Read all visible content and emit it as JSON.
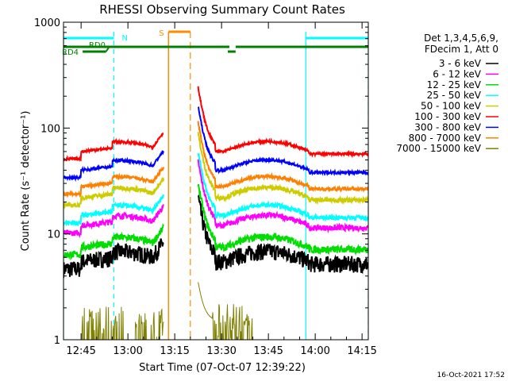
{
  "chart_data": {
    "type": "line",
    "title": "RHESSI Observing Summary Count Rates",
    "xlabel": "Start Time (07-Oct-07 12:39:22)",
    "ylabel": "Count Rate (s⁻¹ detector⁻¹)",
    "ylog": true,
    "xlim": [
      "12:39:22",
      "14:17:00"
    ],
    "ylim": [
      1,
      1000
    ],
    "x_ticks": [
      "12:45",
      "13:00",
      "13:15",
      "13:30",
      "13:45",
      "14:00",
      "14:15"
    ],
    "y_ticks": [
      "1",
      "10",
      "100",
      "1000"
    ],
    "legend_header": [
      "Det 1,3,4,5,6,9,",
      "FDecim 1, Att 0"
    ],
    "legend_position": "right",
    "footer": "16-Oct-2021 17:52",
    "flag_labels": {
      "night": "N",
      "saa": "S",
      "decim": "RD0",
      "rd4": "RD4"
    },
    "flag_colors": {
      "night": "#00ffff",
      "saa": "#ff8c00",
      "decim": "#008000"
    },
    "night_intervals": [
      [
        "12:39:22",
        "12:55:30"
      ],
      [
        "13:57:00",
        "14:17:00"
      ]
    ],
    "saa_interval": [
      "13:13:00",
      "13:20:00"
    ],
    "series": [
      {
        "name": "3 - 6 keV",
        "color": "#000000",
        "base": 5.5,
        "noise": 0.18
      },
      {
        "name": "6 - 12 keV",
        "color": "#ff00ff",
        "base": 12,
        "noise": 0.06
      },
      {
        "name": "12 - 25 keV",
        "color": "#00dd00",
        "base": 7.5,
        "noise": 0.08
      },
      {
        "name": "25 - 50 keV",
        "color": "#00ffff",
        "base": 15,
        "noise": 0.05
      },
      {
        "name": "50 - 100 keV",
        "color": "#cccc00",
        "base": 22,
        "noise": 0.05
      },
      {
        "name": "100 - 300 keV",
        "color": "#ff0000",
        "base": 60,
        "noise": 0.03
      },
      {
        "name": "300 - 800 keV",
        "color": "#0000ff",
        "base": 40,
        "noise": 0.03
      },
      {
        "name": "800 - 7000 keV",
        "color": "#ff8000",
        "base": 28,
        "noise": 0.035
      },
      {
        "name": "7000 - 15000 keV",
        "color": "#808000",
        "base": 1.5,
        "noise": 0.5
      }
    ]
  }
}
